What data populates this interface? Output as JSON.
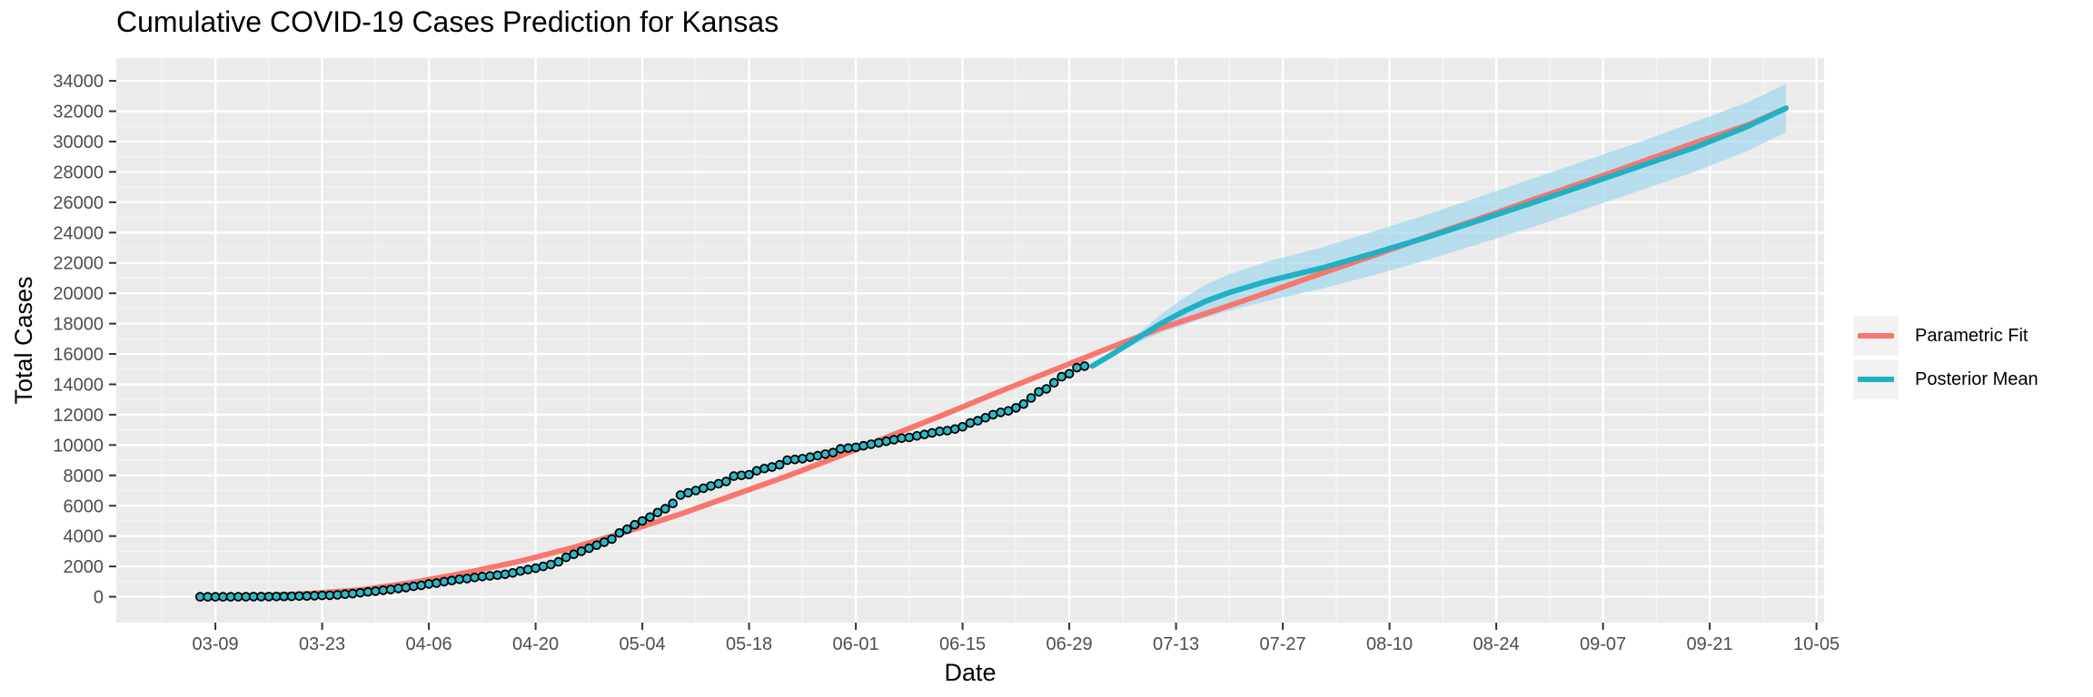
{
  "colors": {
    "panel_bg": "#ebebeb",
    "grid_major": "#ffffff",
    "grid_minor": "#f4f4f4",
    "parametric": "#F8766D",
    "posterior": "#1FB1C4",
    "band": "#A6D8EE",
    "point_fill": "#2BB8C8",
    "point_stroke": "#000000"
  },
  "legend": {
    "items": [
      {
        "label": "Parametric Fit",
        "color": "#F8766D"
      },
      {
        "label": "Posterior Mean",
        "color": "#1FB1C4"
      }
    ]
  },
  "chart_data": {
    "type": "line",
    "title": "Cumulative COVID-19 Cases Prediction for Kansas",
    "xlabel": "Date",
    "ylabel": "Total Cases",
    "x_axis": {
      "type": "date",
      "range": [
        "2020-02-25",
        "2020-10-06"
      ],
      "tick_dates": [
        "2020-03-09",
        "2020-03-23",
        "2020-04-06",
        "2020-04-20",
        "2020-05-04",
        "2020-05-18",
        "2020-06-01",
        "2020-06-15",
        "2020-06-29",
        "2020-07-13",
        "2020-07-27",
        "2020-08-10",
        "2020-08-24",
        "2020-09-07",
        "2020-09-21",
        "2020-10-05"
      ],
      "tick_labels": [
        "03-09",
        "03-23",
        "04-06",
        "04-20",
        "05-04",
        "05-18",
        "06-01",
        "06-15",
        "06-29",
        "07-13",
        "07-27",
        "08-10",
        "08-24",
        "09-07",
        "09-21",
        "10-05"
      ]
    },
    "y_axis": {
      "range": [
        -1700,
        35500
      ],
      "ticks": [
        0,
        2000,
        4000,
        6000,
        8000,
        10000,
        12000,
        14000,
        16000,
        18000,
        20000,
        22000,
        24000,
        26000,
        28000,
        30000,
        32000,
        34000
      ]
    },
    "grid": true,
    "legend_position": "right",
    "series": [
      {
        "name": "Parametric Fit",
        "kind": "line",
        "points": [
          [
            "2020-03-07",
            0
          ],
          [
            "2020-03-14",
            50
          ],
          [
            "2020-03-21",
            200
          ],
          [
            "2020-03-28",
            450
          ],
          [
            "2020-04-04",
            950
          ],
          [
            "2020-04-11",
            1600
          ],
          [
            "2020-04-18",
            2350
          ],
          [
            "2020-04-25",
            3250
          ],
          [
            "2020-05-02",
            4300
          ],
          [
            "2020-05-09",
            5450
          ],
          [
            "2020-05-16",
            6700
          ],
          [
            "2020-05-23",
            7950
          ],
          [
            "2020-05-30",
            9300
          ],
          [
            "2020-06-06",
            10700
          ],
          [
            "2020-06-13",
            12100
          ],
          [
            "2020-06-20",
            13550
          ],
          [
            "2020-06-27",
            14950
          ],
          [
            "2020-07-04",
            16350
          ],
          [
            "2020-07-11",
            17700
          ],
          [
            "2020-07-18",
            18850
          ],
          [
            "2020-07-25",
            20050
          ],
          [
            "2020-08-01",
            21300
          ],
          [
            "2020-08-08",
            22500
          ],
          [
            "2020-08-15",
            23750
          ],
          [
            "2020-08-22",
            24950
          ],
          [
            "2020-08-29",
            26200
          ],
          [
            "2020-09-05",
            27400
          ],
          [
            "2020-09-12",
            28650
          ],
          [
            "2020-09-19",
            29900
          ],
          [
            "2020-09-26",
            31100
          ],
          [
            "2020-10-01",
            32200
          ]
        ]
      },
      {
        "name": "Posterior Mean",
        "kind": "line",
        "points": [
          [
            "2020-07-02",
            15200
          ],
          [
            "2020-07-05",
            16100
          ],
          [
            "2020-07-08",
            17050
          ],
          [
            "2020-07-11",
            18000
          ],
          [
            "2020-07-14",
            18800
          ],
          [
            "2020-07-17",
            19500
          ],
          [
            "2020-07-20",
            20050
          ],
          [
            "2020-07-25",
            20800
          ],
          [
            "2020-08-01",
            21650
          ],
          [
            "2020-08-08",
            22650
          ],
          [
            "2020-08-15",
            23700
          ],
          [
            "2020-08-22",
            24850
          ],
          [
            "2020-08-29",
            26000
          ],
          [
            "2020-09-05",
            27200
          ],
          [
            "2020-09-12",
            28400
          ],
          [
            "2020-09-19",
            29600
          ],
          [
            "2020-09-26",
            31000
          ],
          [
            "2020-10-01",
            32200
          ]
        ]
      },
      {
        "name": "",
        "kind": "band",
        "points": [
          [
            "2020-07-02",
            15200,
            15200
          ],
          [
            "2020-07-05",
            15950,
            16250
          ],
          [
            "2020-07-08",
            16750,
            17350
          ],
          [
            "2020-07-11",
            17400,
            18600
          ],
          [
            "2020-07-14",
            17900,
            19700
          ],
          [
            "2020-07-17",
            18400,
            20600
          ],
          [
            "2020-07-20",
            18850,
            21250
          ],
          [
            "2020-07-25",
            19500,
            22100
          ],
          [
            "2020-08-01",
            20300,
            23000
          ],
          [
            "2020-08-08",
            21200,
            24100
          ],
          [
            "2020-08-15",
            22200,
            25200
          ],
          [
            "2020-08-22",
            23300,
            26400
          ],
          [
            "2020-08-29",
            24400,
            27600
          ],
          [
            "2020-09-05",
            25600,
            28800
          ],
          [
            "2020-09-12",
            26800,
            30000
          ],
          [
            "2020-09-19",
            28000,
            31300
          ],
          [
            "2020-09-26",
            29400,
            32600
          ],
          [
            "2020-10-01",
            30600,
            33800
          ]
        ]
      },
      {
        "name": "",
        "kind": "points",
        "points": [
          [
            "2020-03-07",
            1
          ],
          [
            "2020-03-08",
            1
          ],
          [
            "2020-03-09",
            1
          ],
          [
            "2020-03-10",
            1
          ],
          [
            "2020-03-11",
            1
          ],
          [
            "2020-03-12",
            3
          ],
          [
            "2020-03-13",
            7
          ],
          [
            "2020-03-14",
            8
          ],
          [
            "2020-03-15",
            8
          ],
          [
            "2020-03-16",
            11
          ],
          [
            "2020-03-17",
            18
          ],
          [
            "2020-03-18",
            21
          ],
          [
            "2020-03-19",
            29
          ],
          [
            "2020-03-20",
            45
          ],
          [
            "2020-03-21",
            55
          ],
          [
            "2020-03-22",
            70
          ],
          [
            "2020-03-23",
            90
          ],
          [
            "2020-03-24",
            100
          ],
          [
            "2020-03-25",
            125
          ],
          [
            "2020-03-26",
            170
          ],
          [
            "2020-03-27",
            205
          ],
          [
            "2020-03-28",
            260
          ],
          [
            "2020-03-29",
            320
          ],
          [
            "2020-03-30",
            370
          ],
          [
            "2020-03-31",
            430
          ],
          [
            "2020-04-01",
            480
          ],
          [
            "2020-04-02",
            550
          ],
          [
            "2020-04-03",
            610
          ],
          [
            "2020-04-04",
            690
          ],
          [
            "2020-04-05",
            750
          ],
          [
            "2020-04-06",
            850
          ],
          [
            "2020-04-07",
            900
          ],
          [
            "2020-04-08",
            1000
          ],
          [
            "2020-04-09",
            1070
          ],
          [
            "2020-04-10",
            1150
          ],
          [
            "2020-04-11",
            1200
          ],
          [
            "2020-04-12",
            1270
          ],
          [
            "2020-04-13",
            1330
          ],
          [
            "2020-04-14",
            1380
          ],
          [
            "2020-04-15",
            1430
          ],
          [
            "2020-04-16",
            1480
          ],
          [
            "2020-04-17",
            1570
          ],
          [
            "2020-04-18",
            1700
          ],
          [
            "2020-04-19",
            1790
          ],
          [
            "2020-04-20",
            1880
          ],
          [
            "2020-04-21",
            2000
          ],
          [
            "2020-04-22",
            2130
          ],
          [
            "2020-04-23",
            2300
          ],
          [
            "2020-04-24",
            2600
          ],
          [
            "2020-04-25",
            2800
          ],
          [
            "2020-04-26",
            3000
          ],
          [
            "2020-04-27",
            3200
          ],
          [
            "2020-04-28",
            3400
          ],
          [
            "2020-04-29",
            3600
          ],
          [
            "2020-04-30",
            3800
          ],
          [
            "2020-05-01",
            4200
          ],
          [
            "2020-05-02",
            4450
          ],
          [
            "2020-05-03",
            4750
          ],
          [
            "2020-05-04",
            5000
          ],
          [
            "2020-05-05",
            5250
          ],
          [
            "2020-05-06",
            5550
          ],
          [
            "2020-05-07",
            5800
          ],
          [
            "2020-05-08",
            6150
          ],
          [
            "2020-05-09",
            6700
          ],
          [
            "2020-05-10",
            6850
          ],
          [
            "2020-05-11",
            7000
          ],
          [
            "2020-05-12",
            7150
          ],
          [
            "2020-05-13",
            7300
          ],
          [
            "2020-05-14",
            7450
          ],
          [
            "2020-05-15",
            7600
          ],
          [
            "2020-05-16",
            7950
          ],
          [
            "2020-05-17",
            8000
          ],
          [
            "2020-05-18",
            8050
          ],
          [
            "2020-05-19",
            8300
          ],
          [
            "2020-05-20",
            8450
          ],
          [
            "2020-05-21",
            8550
          ],
          [
            "2020-05-22",
            8700
          ],
          [
            "2020-05-23",
            9000
          ],
          [
            "2020-05-24",
            9050
          ],
          [
            "2020-05-25",
            9100
          ],
          [
            "2020-05-26",
            9200
          ],
          [
            "2020-05-27",
            9300
          ],
          [
            "2020-05-28",
            9400
          ],
          [
            "2020-05-29",
            9500
          ],
          [
            "2020-05-30",
            9750
          ],
          [
            "2020-05-31",
            9800
          ],
          [
            "2020-06-01",
            9850
          ],
          [
            "2020-06-02",
            9950
          ],
          [
            "2020-06-03",
            10050
          ],
          [
            "2020-06-04",
            10150
          ],
          [
            "2020-06-05",
            10250
          ],
          [
            "2020-06-06",
            10350
          ],
          [
            "2020-06-07",
            10450
          ],
          [
            "2020-06-08",
            10500
          ],
          [
            "2020-06-09",
            10600
          ],
          [
            "2020-06-10",
            10700
          ],
          [
            "2020-06-11",
            10800
          ],
          [
            "2020-06-12",
            10900
          ],
          [
            "2020-06-13",
            10950
          ],
          [
            "2020-06-14",
            11050
          ],
          [
            "2020-06-15",
            11200
          ],
          [
            "2020-06-16",
            11450
          ],
          [
            "2020-06-17",
            11600
          ],
          [
            "2020-06-18",
            11800
          ],
          [
            "2020-06-19",
            12000
          ],
          [
            "2020-06-20",
            12150
          ],
          [
            "2020-06-21",
            12250
          ],
          [
            "2020-06-22",
            12450
          ],
          [
            "2020-06-23",
            12700
          ],
          [
            "2020-06-24",
            13100
          ],
          [
            "2020-06-25",
            13500
          ],
          [
            "2020-06-26",
            13700
          ],
          [
            "2020-06-27",
            14100
          ],
          [
            "2020-06-28",
            14500
          ],
          [
            "2020-06-29",
            14700
          ],
          [
            "2020-06-30",
            15100
          ],
          [
            "2020-07-01",
            15200
          ]
        ]
      }
    ]
  }
}
